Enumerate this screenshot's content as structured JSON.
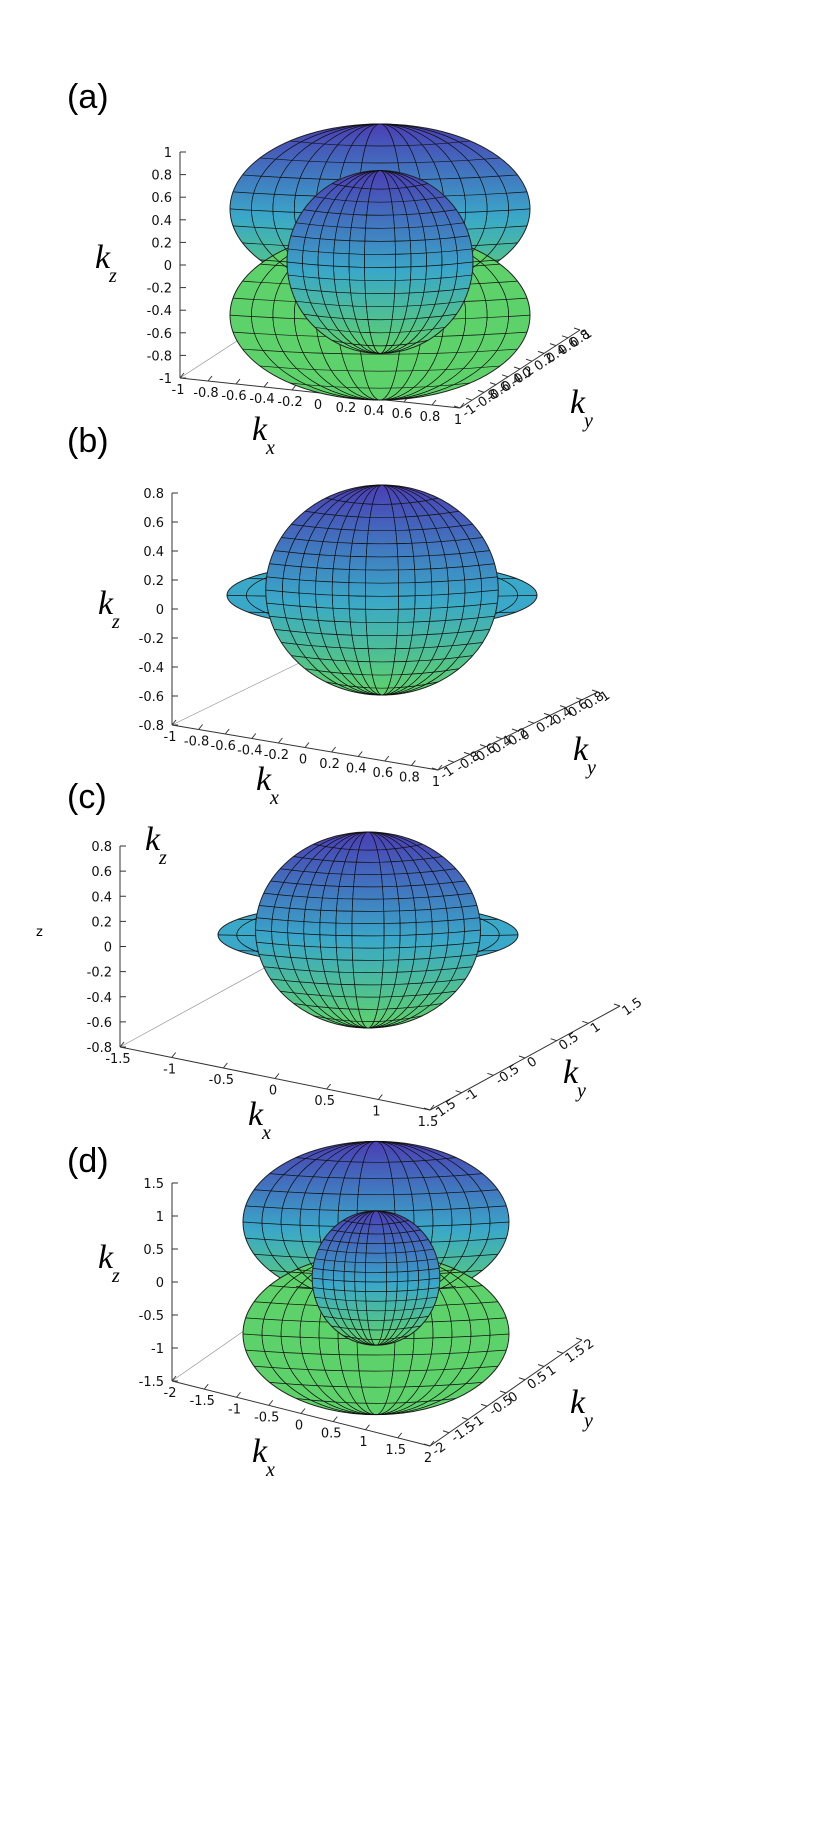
{
  "chart_data": [
    {
      "type": "surface3d",
      "panel_label": "(a)",
      "shape": "torus with inner lobe",
      "xlabel": {
        "main": "k",
        "sub": "x"
      },
      "ylabel": {
        "main": "k",
        "sub": "y"
      },
      "zlabel": {
        "main": "k",
        "sub": "z"
      },
      "xlim": [
        -1,
        1
      ],
      "ylim": [
        -1,
        1
      ],
      "zlim": [
        -1,
        1
      ],
      "x_ticks": [
        "-1",
        "-0.8",
        "-0.6",
        "-0.4",
        "-0.2",
        "0",
        "0.2",
        "0.4",
        "0.6",
        "0.8",
        "1"
      ],
      "y_ticks": [
        "-1",
        "-0.8",
        "-0.6",
        "-0.4",
        "-0.2",
        "0",
        "0.2",
        "0.4",
        "0.6",
        "0.8",
        "1"
      ],
      "z_ticks": [
        "1",
        "0.8",
        "0.6",
        "0.4",
        "0.2",
        "0",
        "-0.2",
        "-0.4",
        "-0.6",
        "-0.8",
        "-1"
      ]
    },
    {
      "type": "surface3d",
      "panel_label": "(b)",
      "shape": "sphere with brim",
      "xlabel": {
        "main": "k",
        "sub": "x"
      },
      "ylabel": {
        "main": "k",
        "sub": "y"
      },
      "zlabel": {
        "main": "k",
        "sub": "z"
      },
      "xlim": [
        -1,
        1
      ],
      "ylim": [
        -1,
        1
      ],
      "zlim": [
        -0.8,
        0.8
      ],
      "x_ticks": [
        "-1",
        "-0.8",
        "-0.6",
        "-0.4",
        "-0.2",
        "0",
        "0.2",
        "0.4",
        "0.6",
        "0.8",
        "1"
      ],
      "y_ticks": [
        "-1",
        "-0.8",
        "-0.6",
        "-0.4",
        "-0.2",
        "0",
        "0.2",
        "0.4",
        "0.6",
        "0.8",
        "1"
      ],
      "z_ticks": [
        "0.8",
        "0.6",
        "0.4",
        "0.2",
        "0",
        "-0.2",
        "-0.4",
        "-0.6",
        "-0.8"
      ]
    },
    {
      "type": "surface3d",
      "panel_label": "(c)",
      "shape": "sphere with brim",
      "xlabel": {
        "main": "k",
        "sub": "x"
      },
      "ylabel": {
        "main": "k",
        "sub": "y"
      },
      "zlabel": {
        "main": "k",
        "sub": "z"
      },
      "stray_label": "z",
      "xlim": [
        -1.5,
        1.5
      ],
      "ylim": [
        -1.5,
        1.5
      ],
      "zlim": [
        -0.8,
        0.8
      ],
      "x_ticks": [
        "-1.5",
        "-1",
        "-0.5",
        "0",
        "0.5",
        "1",
        "1.5"
      ],
      "y_ticks": [
        "-1.5",
        "-1",
        "-0.5",
        "0",
        "0.5",
        "1",
        "1.5"
      ],
      "z_ticks": [
        "0.8",
        "0.6",
        "0.4",
        "0.2",
        "0",
        "-0.2",
        "-0.4",
        "-0.6",
        "-0.8"
      ]
    },
    {
      "type": "surface3d",
      "panel_label": "(d)",
      "shape": "torus with inner sphere",
      "xlabel": {
        "main": "k",
        "sub": "x"
      },
      "ylabel": {
        "main": "k",
        "sub": "y"
      },
      "zlabel": {
        "main": "k",
        "sub": "z"
      },
      "xlim": [
        -2,
        2
      ],
      "ylim": [
        -2,
        2
      ],
      "zlim": [
        -1.5,
        1.5
      ],
      "x_ticks": [
        "-2",
        "-1.5",
        "-1",
        "-0.5",
        "0",
        "0.5",
        "1",
        "1.5",
        "2"
      ],
      "y_ticks": [
        "-2",
        "-1.5",
        "-1",
        "-0.5",
        "0",
        "0.5",
        "1",
        "1.5",
        "2"
      ],
      "z_ticks": [
        "1.5",
        "1",
        "0.5",
        "0",
        "-0.5",
        "-1",
        "-1.5"
      ]
    }
  ],
  "colors": {
    "surface_top": "#4a3fb5",
    "surface_mid": "#3aa8c8",
    "surface_bottom": "#5ed26a",
    "mesh": "#111111",
    "axis": "#333333"
  }
}
